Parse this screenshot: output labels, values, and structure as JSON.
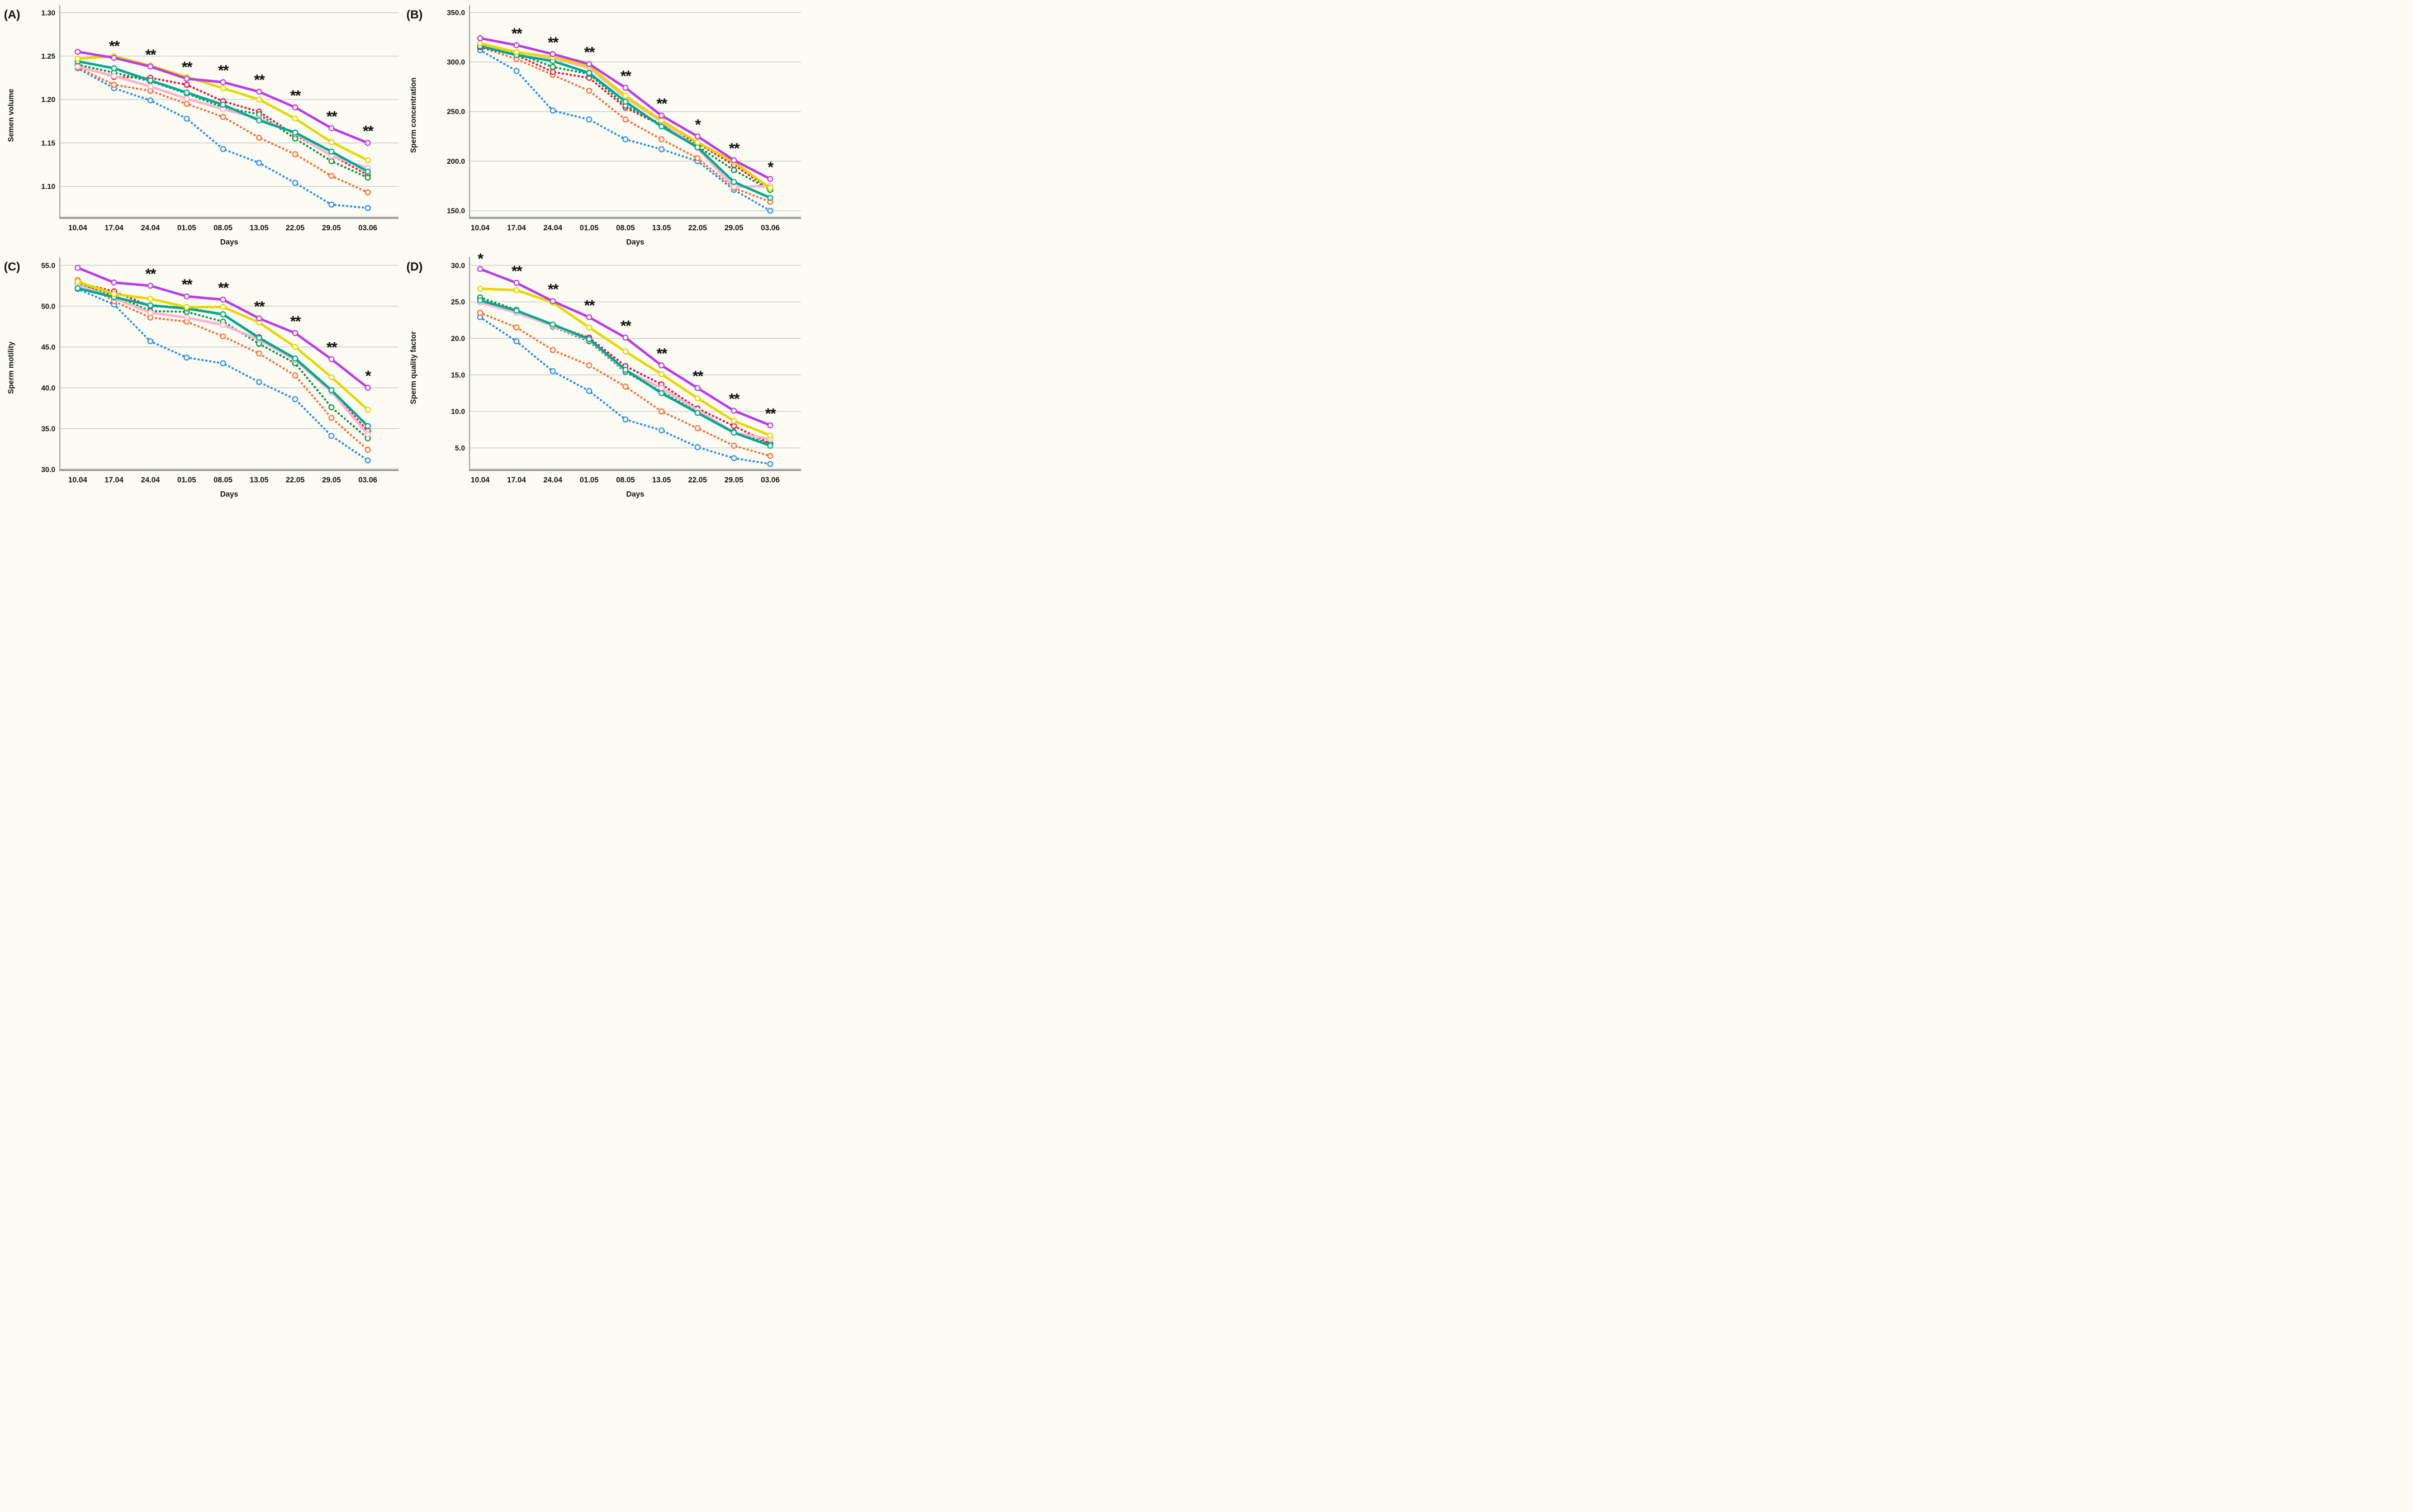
{
  "figure": {
    "xlabel": "Days",
    "categories": [
      "10.04",
      "17.04",
      "24.04",
      "01.05",
      "08.05",
      "13.05",
      "22.05",
      "29.05",
      "03.06"
    ],
    "background_color": "#fcfcf5",
    "gridline_color": "#c4c4c4",
    "axis_color": "#8f8f8f",
    "legend": "none"
  },
  "chart_data": [
    {
      "type": "line",
      "panel_label": "(A)",
      "ylabel": "Semen volume",
      "xlabel": "Days",
      "categories": [
        "10.04",
        "17.04",
        "24.04",
        "01.05",
        "08.05",
        "13.05",
        "22.05",
        "29.05",
        "03.06"
      ],
      "ytick_labels": [
        "1.30",
        "1.25",
        "1.20",
        "1.15",
        "1.10"
      ],
      "ylim": [
        1.06,
        1.31
      ],
      "grid": true,
      "significance": [
        "",
        "**",
        "**",
        "**",
        "**",
        "**",
        "**",
        "**",
        "**"
      ],
      "series": [
        {
          "name": "violet-solid",
          "color": "#bb3de4",
          "style": "solid",
          "values": [
            1.255,
            1.248,
            1.238,
            1.224,
            1.22,
            1.209,
            1.191,
            1.167,
            1.15
          ]
        },
        {
          "name": "yellow-solid",
          "color": "#e7d800",
          "style": "solid",
          "values": [
            1.247,
            1.25,
            1.239,
            1.226,
            1.213,
            1.2,
            1.178,
            1.151,
            1.13
          ]
        },
        {
          "name": "teal-solid",
          "color": "#00a98f",
          "style": "solid",
          "values": [
            1.244,
            1.236,
            1.222,
            1.208,
            1.194,
            1.176,
            1.162,
            1.14,
            1.117
          ]
        },
        {
          "name": "pink-solid",
          "color": "#ffb3d0",
          "style": "solid",
          "values": [
            1.238,
            1.227,
            1.215,
            1.201,
            1.189,
            1.178,
            1.161,
            1.135,
            1.121
          ]
        },
        {
          "name": "green-dotted",
          "color": "#12923f",
          "style": "dotted",
          "values": [
            1.24,
            1.231,
            1.221,
            1.207,
            1.191,
            1.183,
            1.155,
            1.129,
            1.11
          ]
        },
        {
          "name": "red-dotted",
          "color": "#ed1440",
          "style": "dotted",
          "values": [
            1.239,
            1.226,
            1.225,
            1.217,
            1.198,
            1.186,
            1.159,
            1.136,
            1.113
          ]
        },
        {
          "name": "orange-dotted",
          "color": "#fb6f33",
          "style": "dotted",
          "values": [
            1.237,
            1.217,
            1.21,
            1.195,
            1.18,
            1.156,
            1.137,
            1.112,
            1.093
          ]
        },
        {
          "name": "blue-dotted",
          "color": "#2f8fe8",
          "style": "dotted",
          "values": [
            1.236,
            1.213,
            1.199,
            1.178,
            1.143,
            1.127,
            1.104,
            1.079,
            1.075
          ]
        }
      ]
    },
    {
      "type": "line",
      "panel_label": "(B)",
      "ylabel": "Sperm concentration",
      "xlabel": "Days",
      "categories": [
        "10.04",
        "17.04",
        "24.04",
        "01.05",
        "08.05",
        "13.05",
        "22.05",
        "29.05",
        "03.06"
      ],
      "ytick_labels": [
        "350.0",
        "300.0",
        "250.0",
        "200.0",
        "150.0"
      ],
      "ylim": [
        143,
        355
      ],
      "grid": true,
      "significance": [
        "",
        "**",
        "**",
        "**",
        "**",
        "**",
        "*",
        "**",
        "*"
      ],
      "series": [
        {
          "name": "violet-solid",
          "color": "#bb3de4",
          "style": "solid",
          "values": [
            324,
            317,
            308,
            298,
            274,
            246,
            225,
            201,
            182
          ]
        },
        {
          "name": "yellow-solid",
          "color": "#e7d800",
          "style": "solid",
          "values": [
            319,
            310,
            305,
            296,
            266,
            241,
            219,
            199,
            173
          ]
        },
        {
          "name": "teal-solid",
          "color": "#00a98f",
          "style": "solid",
          "values": [
            316,
            307,
            301,
            289,
            260,
            235,
            214,
            179,
            163
          ]
        },
        {
          "name": "pink-solid",
          "color": "#ffb3d0",
          "style": "solid",
          "values": [
            317,
            310,
            304,
            294,
            264,
            240,
            213,
            174,
            175
          ]
        },
        {
          "name": "green-dotted",
          "color": "#12923f",
          "style": "dotted",
          "values": [
            316,
            309,
            295,
            288,
            256,
            237,
            215,
            191,
            171
          ]
        },
        {
          "name": "red-dotted",
          "color": "#ed1440",
          "style": "dotted",
          "values": [
            315,
            307,
            290,
            284,
            254,
            236,
            218,
            196,
            172
          ]
        },
        {
          "name": "orange-dotted",
          "color": "#fb6f33",
          "style": "dotted",
          "values": [
            315,
            303,
            287,
            271,
            242,
            222,
            203,
            173,
            159
          ]
        },
        {
          "name": "blue-dotted",
          "color": "#2f8fe8",
          "style": "dotted",
          "values": [
            312,
            291,
            251,
            242,
            222,
            212,
            200,
            171,
            150
          ]
        }
      ]
    },
    {
      "type": "line",
      "panel_label": "(C)",
      "ylabel": "Sperm motility",
      "xlabel": "Days",
      "categories": [
        "10.04",
        "17.04",
        "24.04",
        "01.05",
        "08.05",
        "13.05",
        "22.05",
        "29.05",
        "03.06"
      ],
      "ytick_labels": [
        "55.0",
        "50.0",
        "45.0",
        "40.0",
        "35.0",
        "30.0"
      ],
      "ylim": [
        30,
        56.5
      ],
      "grid": true,
      "significance": [
        "",
        "",
        "**",
        "**",
        "**",
        "**",
        "**",
        "**",
        "*"
      ],
      "series": [
        {
          "name": "violet-solid",
          "color": "#bb3de4",
          "style": "solid",
          "values": [
            54.7,
            52.9,
            52.5,
            51.2,
            50.8,
            48.5,
            46.7,
            43.5,
            40.0
          ]
        },
        {
          "name": "yellow-solid",
          "color": "#e7d800",
          "style": "solid",
          "values": [
            53.0,
            51.5,
            50.9,
            49.9,
            49.9,
            48.0,
            45.0,
            41.3,
            37.3
          ]
        },
        {
          "name": "teal-solid",
          "color": "#00a98f",
          "style": "solid",
          "values": [
            52.2,
            51.1,
            50.1,
            49.7,
            49.0,
            46.1,
            43.6,
            39.7,
            35.3
          ]
        },
        {
          "name": "pink-solid",
          "color": "#ffb3d0",
          "style": "solid",
          "values": [
            52.6,
            51.0,
            49.2,
            48.6,
            47.7,
            45.9,
            43.4,
            39.5,
            34.3
          ]
        },
        {
          "name": "green-dotted",
          "color": "#12923f",
          "style": "dotted",
          "values": [
            52.8,
            51.3,
            49.4,
            49.3,
            48.1,
            45.4,
            43.0,
            37.6,
            33.8
          ]
        },
        {
          "name": "red-dotted",
          "color": "#ed1440",
          "style": "dotted",
          "values": [
            52.9,
            51.8,
            50.0,
            49.8,
            49.0,
            46.2,
            43.5,
            39.6,
            34.7
          ]
        },
        {
          "name": "orange-dotted",
          "color": "#fb6f33",
          "style": "dotted",
          "values": [
            53.2,
            50.6,
            48.6,
            48.1,
            46.3,
            44.2,
            41.5,
            36.3,
            32.4
          ]
        },
        {
          "name": "blue-dotted",
          "color": "#2f8fe8",
          "style": "dotted",
          "values": [
            52.1,
            50.2,
            45.7,
            43.7,
            43.0,
            40.7,
            38.6,
            34.1,
            31.1
          ]
        }
      ]
    },
    {
      "type": "line",
      "panel_label": "(D)",
      "ylabel": "Sperm quality factor",
      "xlabel": "Days",
      "categories": [
        "10.04",
        "17.04",
        "24.04",
        "01.05",
        "08.05",
        "13.05",
        "22.05",
        "29.05",
        "03.06"
      ],
      "ytick_labels": [
        "30.0",
        "25.0",
        "20.0",
        "15.0",
        "10.0",
        "5.0"
      ],
      "ylim": [
        1.8,
        31
      ],
      "grid": true,
      "significance": [
        "*",
        "**",
        "**",
        "**",
        "**",
        "**",
        "**",
        "**",
        "**"
      ],
      "series": [
        {
          "name": "violet-solid",
          "color": "#bb3de4",
          "style": "solid",
          "values": [
            29.5,
            27.6,
            25.1,
            22.9,
            20.1,
            16.3,
            13.2,
            10.1,
            8.1
          ]
        },
        {
          "name": "yellow-solid",
          "color": "#e7d800",
          "style": "solid",
          "values": [
            26.8,
            26.6,
            24.9,
            21.5,
            18.2,
            15.1,
            11.8,
            8.7,
            6.7
          ]
        },
        {
          "name": "teal-solid",
          "color": "#00a98f",
          "style": "solid",
          "values": [
            25.2,
            23.8,
            21.9,
            19.9,
            15.7,
            12.5,
            9.8,
            7.1,
            5.3
          ]
        },
        {
          "name": "pink-solid",
          "color": "#ffb3d0",
          "style": "solid",
          "values": [
            24.9,
            23.5,
            21.7,
            19.8,
            15.6,
            13.2,
            10.2,
            7.1,
            6.2
          ]
        },
        {
          "name": "green-dotted",
          "color": "#12923f",
          "style": "dotted",
          "values": [
            25.6,
            23.9,
            21.6,
            19.6,
            15.4,
            12.7,
            9.9,
            7.2,
            5.5
          ]
        },
        {
          "name": "red-dotted",
          "color": "#ed1440",
          "style": "dotted",
          "values": [
            25.0,
            23.8,
            21.8,
            20.1,
            16.2,
            13.7,
            10.4,
            8.0,
            5.6
          ]
        },
        {
          "name": "orange-dotted",
          "color": "#fb6f33",
          "style": "dotted",
          "values": [
            23.5,
            21.5,
            18.4,
            16.3,
            13.4,
            10.0,
            7.7,
            5.3,
            3.9
          ]
        },
        {
          "name": "blue-dotted",
          "color": "#2f8fe8",
          "style": "dotted",
          "values": [
            22.9,
            19.6,
            15.5,
            12.8,
            8.9,
            7.4,
            5.1,
            3.6,
            2.8
          ]
        }
      ]
    }
  ]
}
